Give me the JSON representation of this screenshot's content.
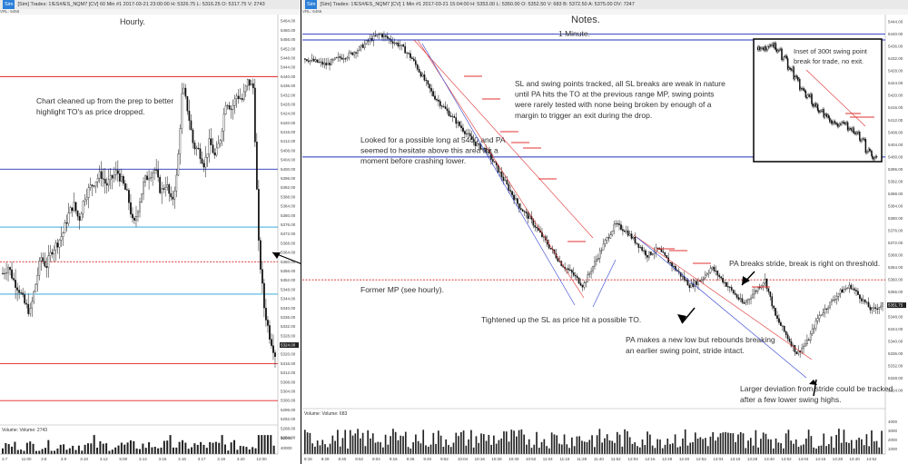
{
  "left": {
    "header": "[Sim] Trades: 1!ES#/ES_NQM7 [CV]  60 Min  #1  2017-03-21 23:00:00  H: 5326.75  L: 5316.25  O: 5317.75  V: 2743",
    "subheader": "VRL: 6456",
    "title": "Hourly.",
    "note": [
      "Chart cleaned up from the prep to better",
      "highlight TO's as price dropped."
    ],
    "volume_label": "Volume: Volume: 2743",
    "x_labels": [
      "3.7",
      "11:00",
      "3.8",
      "3.9",
      "3.10",
      "3.12",
      "5:00",
      "3.14",
      "3.15",
      "3.16",
      "3.17",
      "3.19",
      "3.20",
      "12:00"
    ],
    "y_labels": [
      "5468.00",
      "5464.00",
      "5460.00",
      "5456.00",
      "5452.00",
      "5448.00",
      "5444.00",
      "5440.00",
      "5436.00",
      "5432.00",
      "5428.00",
      "5424.00",
      "5420.00",
      "5416.00",
      "5412.00",
      "5408.00",
      "5404.00",
      "5400.00",
      "5396.00",
      "5392.00",
      "5388.00",
      "5384.00",
      "5380.00",
      "5376.00",
      "5372.00",
      "5368.00",
      "5364.00",
      "5360.00",
      "5356.00",
      "5352.00",
      "5348.00",
      "5344.00",
      "5340.00",
      "5336.00",
      "5332.00",
      "5328.00",
      "5324.00",
      "5320.00",
      "5316.00",
      "5312.00",
      "5308.00",
      "5304.00",
      "5300.00",
      "5296.00",
      "5292.00",
      "5288.00",
      "5284.00"
    ],
    "price_tag": "5324.00",
    "vol_axis": [
      "60000",
      "40000"
    ]
  },
  "right": {
    "header": "[Sim] Trades: 1!ES#/ES_NQM7 [CV]  1 Min  #1  2017-03-21 15:04:00  H: 5353.00  L: 5350.00  O: 5352.50  V: 683  B: 5372.50  A: 5375.00  DV: 7247",
    "subheader": "VRL: 6456",
    "title_main": "Notes.",
    "title_sub": "1 Minute.",
    "notes": {
      "sl_swing": [
        "SL and swing points tracked, all SL breaks are weak in nature",
        "until PA hits the TO at the previous range MP, swing points",
        "were rarely tested with none being broken by enough of a",
        "margin to trigger an exit during the drop."
      ],
      "long_5400": [
        "Looked for a possible long at 5400 and PA",
        "seemed to hesitate above this area for a",
        "moment before crashing lower."
      ],
      "former_mp": "Former MP (see hourly).",
      "tightened": "Tightened up the SL as price hit a possible TO.",
      "pa_breaks": "PA breaks stride, break is right on threshold.",
      "new_low": [
        "PA makes a new low but rebounds breaking",
        "an earlier swing point, stride intact."
      ],
      "larger_dev": [
        "Larger deviation from stride could be tracked",
        "after a few lower swing highs."
      ],
      "inset": [
        "Inset of 300t swing point",
        "break for trade, no exit."
      ]
    },
    "volume_label": "Volume: Volume: 683",
    "x_labels": [
      "8:16",
      "8:28",
      "8:40",
      "8:52",
      "9:04",
      "9:16",
      "9:28",
      "9:40",
      "9:52",
      "10:04",
      "10:16",
      "10:28",
      "10:40",
      "10:52",
      "11:04",
      "11:16",
      "11:28",
      "11:40",
      "11:52",
      "12:04",
      "12:16",
      "12:28",
      "12:40",
      "12:52",
      "13:04",
      "13:16",
      "13:28",
      "13:40",
      "13:52",
      "14:04",
      "14:16",
      "14:28",
      "14:40",
      "14:52"
    ],
    "y_labels": [
      "5444.00",
      "5440.00",
      "5436.00",
      "5432.00",
      "5428.00",
      "5424.00",
      "5420.00",
      "5416.00",
      "5412.00",
      "5408.00",
      "5404.00",
      "5400.00",
      "5396.00",
      "5392.00",
      "5388.00",
      "5384.00",
      "5380.00",
      "5376.00",
      "5372.00",
      "5368.00",
      "5364.00",
      "5360.00",
      "5356.00",
      "5352.00",
      "5348.00",
      "5344.00",
      "5340.00",
      "5336.00",
      "5332.00",
      "5328.00",
      "5324.00"
    ],
    "price_tag": "5351.75",
    "vol_axis": [
      "4000",
      "3000",
      "2000",
      "1000"
    ]
  },
  "colors": {
    "blue_level": "#2233bb",
    "red_level": "#e02020",
    "cyan_level": "#1a9fd6",
    "candle": "#111111",
    "trend": "#e03030",
    "trend_blue": "#3040d0"
  },
  "chart_data": [
    {
      "type": "candlestick",
      "title": "Hourly.",
      "timeframe": "60 Min",
      "ylim": [
        5284,
        5468
      ],
      "levels": [
        {
          "price": 5440,
          "color": "red"
        },
        {
          "price": 5400,
          "color": "blue"
        },
        {
          "price": 5375,
          "color": "cyan"
        },
        {
          "price": 5360,
          "color": "red",
          "style": "dashed",
          "label": "Former MP (see hourly)."
        },
        {
          "price": 5346,
          "color": "cyan"
        },
        {
          "price": 5316,
          "color": "red"
        },
        {
          "price": 5300,
          "color": "red"
        }
      ],
      "path_close": [
        5355,
        5358,
        5352,
        5348,
        5342,
        5338,
        5350,
        5362,
        5358,
        5365,
        5368,
        5372,
        5380,
        5385,
        5378,
        5388,
        5392,
        5395,
        5398,
        5393,
        5396,
        5399,
        5394,
        5388,
        5375,
        5385,
        5395,
        5398,
        5400,
        5390,
        5394,
        5385,
        5398,
        5436,
        5425,
        5410,
        5408,
        5402,
        5412,
        5405,
        5414,
        5430,
        5426,
        5432,
        5430,
        5438,
        5435,
        5366,
        5340,
        5328,
        5320
      ]
    },
    {
      "type": "candlestick",
      "title": "1 Minute.",
      "timeframe": "1 Min",
      "ylim": [
        5324,
        5444
      ],
      "levels": [
        {
          "price": 5440,
          "color": "blue"
        },
        {
          "price": 5400,
          "color": "blue"
        },
        {
          "price": 5360,
          "color": "red",
          "style": "dashed"
        }
      ],
      "path_close": [
        5432,
        5431,
        5430,
        5432,
        5433,
        5435,
        5438,
        5440,
        5438,
        5436,
        5432,
        5426,
        5420,
        5416,
        5412,
        5408,
        5404,
        5402,
        5396,
        5390,
        5384,
        5380,
        5375,
        5370,
        5365,
        5362,
        5358,
        5365,
        5372,
        5378,
        5376,
        5372,
        5368,
        5370,
        5366,
        5362,
        5358,
        5360,
        5364,
        5360,
        5356,
        5352,
        5356,
        5360,
        5348,
        5342,
        5336,
        5340,
        5348,
        5352,
        5356,
        5358,
        5354,
        5350,
        5352
      ]
    }
  ]
}
